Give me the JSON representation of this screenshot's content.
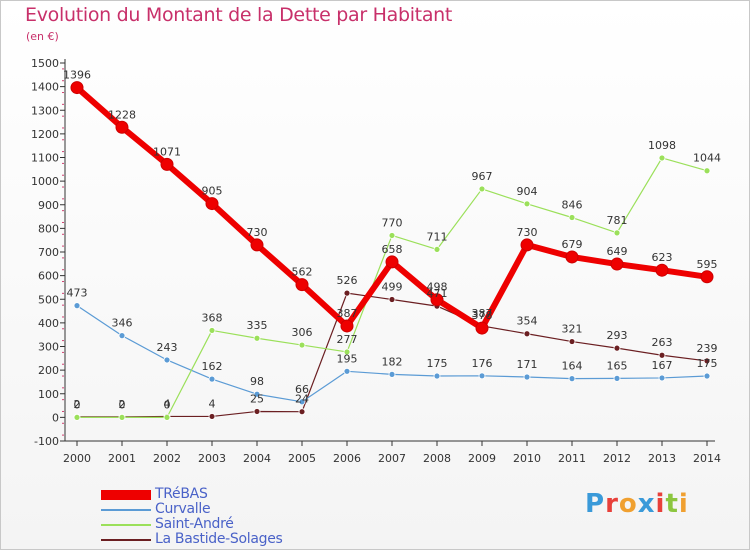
{
  "title": "Evolution du Montant de la Dette par Habitant",
  "subtitle": "(en €)",
  "logo": {
    "text": "Proxiti",
    "letter_colors": [
      "#3a9ad9",
      "#e8403a",
      "#f0a030",
      "#3a9ad9",
      "#e8403a",
      "#8cc63f",
      "#f0a030"
    ]
  },
  "chart_data": {
    "type": "line",
    "title": "Evolution du Montant de la Dette par Habitant",
    "subtitle": "(en €)",
    "xlabel": "",
    "ylabel": "",
    "x": [
      "2000",
      "2001",
      "2002",
      "2003",
      "2004",
      "2005",
      "2006",
      "2007",
      "2008",
      "2009",
      "2010",
      "2011",
      "2012",
      "2013",
      "2014"
    ],
    "ylim": [
      -100,
      1500
    ],
    "yticks": [
      -100,
      0,
      100,
      200,
      300,
      400,
      500,
      600,
      700,
      800,
      900,
      1000,
      1100,
      1200,
      1300,
      1400,
      1500
    ],
    "grid": false,
    "legend_position": "bottom-left",
    "series": [
      {
        "name": "La Bastide-Solages",
        "color": "#6b1f22",
        "values": [
          2,
          2,
          4,
          4,
          25,
          24,
          526,
          499,
          471,
          387,
          354,
          321,
          293,
          263,
          239
        ],
        "labels": [
          "2",
          "2",
          "4",
          "4",
          "25",
          "24",
          "526",
          "499",
          "471",
          "387",
          "354",
          "321",
          "293",
          "263",
          "239"
        ]
      },
      {
        "name": "Curvalle",
        "color": "#5b9bd5",
        "values": [
          473,
          346,
          243,
          162,
          98,
          66,
          195,
          182,
          175,
          176,
          171,
          164,
          165,
          167,
          175
        ],
        "labels": [
          "473",
          "346",
          "243",
          "162",
          "98",
          "66",
          "195",
          "182",
          "175",
          "176",
          "171",
          "164",
          "165",
          "167",
          "175"
        ]
      },
      {
        "name": "Saint-André",
        "color": "#9be05a",
        "values": [
          0,
          0,
          0,
          368,
          335,
          306,
          277,
          770,
          711,
          967,
          904,
          846,
          781,
          1098,
          1044
        ],
        "labels": [
          "0",
          "0",
          "0",
          "368",
          "335",
          "306",
          "277",
          "770",
          "711",
          "967",
          "904",
          "846",
          "781",
          "1098",
          "1044"
        ]
      },
      {
        "name": "TRéBAS",
        "color": "#ee0000",
        "values": [
          1396,
          1228,
          1071,
          905,
          730,
          562,
          387,
          658,
          498,
          378,
          730,
          679,
          649,
          623,
          595
        ],
        "labels": [
          "1396",
          "1228",
          "1071",
          "905",
          "730",
          "562",
          "387",
          "658",
          "498",
          "378",
          "730",
          "679",
          "649",
          "623",
          "595"
        ]
      }
    ],
    "legend": [
      "TRéBAS",
      "Curvalle",
      "Saint-André",
      "La Bastide-Solages"
    ]
  }
}
